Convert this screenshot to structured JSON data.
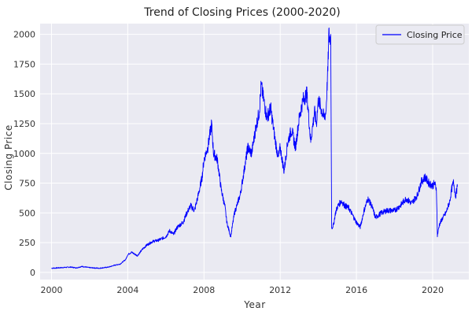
{
  "chart_data": {
    "type": "line",
    "title": "Trend of Closing Prices (2000-2020)",
    "xlabel": "Year",
    "ylabel": "Closing Price",
    "xlim": [
      1999.4,
      2021.9
    ],
    "ylim": [
      -60,
      2090
    ],
    "x_ticks": [
      2000,
      2004,
      2008,
      2012,
      2016,
      2020
    ],
    "x_tick_labels": [
      "2000",
      "2004",
      "2008",
      "2012",
      "2016",
      "2020"
    ],
    "y_ticks": [
      0,
      250,
      500,
      750,
      1000,
      1250,
      1500,
      1750,
      2000
    ],
    "y_tick_labels": [
      "0",
      "250",
      "500",
      "750",
      "1000",
      "1250",
      "1500",
      "1750",
      "2000"
    ],
    "grid": true,
    "legend_position": "top-right",
    "colors": {
      "background": "#eaeaf2",
      "grid": "#ffffff",
      "line": "#0000ff"
    },
    "series": [
      {
        "name": "Closing Price",
        "x": [
          2000.0,
          2000.5,
          2001.0,
          2001.3,
          2001.6,
          2002.0,
          2002.5,
          2003.0,
          2003.3,
          2003.6,
          2003.9,
          2004.0,
          2004.2,
          2004.5,
          2004.8,
          2005.0,
          2005.3,
          2005.6,
          2006.0,
          2006.2,
          2006.4,
          2006.6,
          2006.9,
          2007.1,
          2007.3,
          2007.5,
          2007.7,
          2007.9,
          2008.0,
          2008.2,
          2008.4,
          2008.5,
          2008.7,
          2008.9,
          2009.1,
          2009.2,
          2009.4,
          2009.6,
          2009.9,
          2010.1,
          2010.3,
          2010.5,
          2010.7,
          2010.9,
          2011.0,
          2011.3,
          2011.5,
          2011.7,
          2011.9,
          2012.0,
          2012.2,
          2012.4,
          2012.6,
          2012.8,
          2013.0,
          2013.2,
          2013.4,
          2013.6,
          2013.8,
          2013.9,
          2014.0,
          2014.1,
          2014.3,
          2014.4,
          2014.5,
          2014.55,
          2014.6,
          2014.65,
          2014.7,
          2014.8,
          2014.9,
          2015.0,
          2015.2,
          2015.4,
          2015.6,
          2015.8,
          2016.0,
          2016.2,
          2016.4,
          2016.6,
          2016.8,
          2017.0,
          2017.3,
          2017.6,
          2018.0,
          2018.3,
          2018.6,
          2018.9,
          2019.2,
          2019.4,
          2019.6,
          2019.8,
          2020.0,
          2020.1,
          2020.2,
          2020.25,
          2020.35,
          2020.5,
          2020.7,
          2020.9,
          2021.0,
          2021.1,
          2021.2,
          2021.3
        ],
        "values": [
          35,
          40,
          45,
          38,
          50,
          40,
          35,
          45,
          60,
          70,
          110,
          150,
          170,
          140,
          200,
          230,
          260,
          270,
          300,
          350,
          320,
          380,
          420,
          500,
          560,
          520,
          650,
          800,
          950,
          1050,
          1250,
          1000,
          950,
          700,
          550,
          420,
          300,
          500,
          650,
          850,
          1050,
          1000,
          1200,
          1350,
          1570,
          1300,
          1380,
          1150,
          950,
          1050,
          850,
          1100,
          1200,
          1050,
          1300,
          1450,
          1500,
          1100,
          1350,
          1250,
          1450,
          1400,
          1300,
          1350,
          1700,
          2000,
          1950,
          2000,
          370,
          400,
          500,
          550,
          600,
          560,
          540,
          480,
          420,
          380,
          520,
          620,
          560,
          460,
          500,
          520,
          520,
          560,
          620,
          580,
          650,
          760,
          800,
          750,
          730,
          750,
          700,
          310,
          400,
          450,
          500,
          600,
          700,
          760,
          640,
          720
        ]
      }
    ]
  }
}
